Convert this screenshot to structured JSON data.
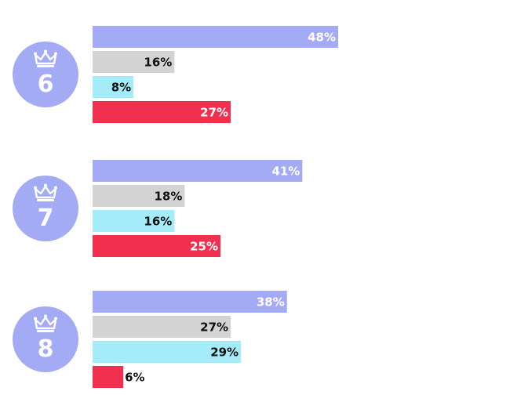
{
  "chart_data": {
    "type": "bar",
    "orientation": "horizontal",
    "title": "",
    "xlabel": "",
    "ylabel": "",
    "xlim": [
      0,
      48
    ],
    "value_suffix": "%",
    "colors": [
      "#a3abf5",
      "#d3d3d3",
      "#a5ecfb",
      "#f0304e"
    ],
    "label_colors": [
      "#ffffff",
      "#111111",
      "#111111",
      "#ffffff"
    ],
    "badge_color": "#a3abf5",
    "badge_icon": "crown-icon",
    "groups": [
      {
        "label": "6",
        "values": [
          48,
          16,
          8,
          27
        ]
      },
      {
        "label": "7",
        "values": [
          41,
          18,
          16,
          25
        ]
      },
      {
        "label": "8",
        "values": [
          38,
          27,
          29,
          6
        ]
      }
    ]
  }
}
